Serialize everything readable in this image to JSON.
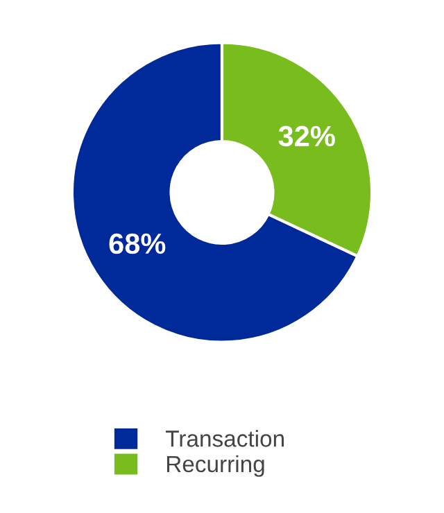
{
  "chart_data": {
    "type": "donut",
    "categories": [
      "Transaction",
      "Recurring"
    ],
    "values": [
      68,
      32
    ],
    "colors": [
      "#00299a",
      "#78bc1e"
    ],
    "value_labels": [
      "68%",
      "32%"
    ],
    "legend": "bottom"
  }
}
